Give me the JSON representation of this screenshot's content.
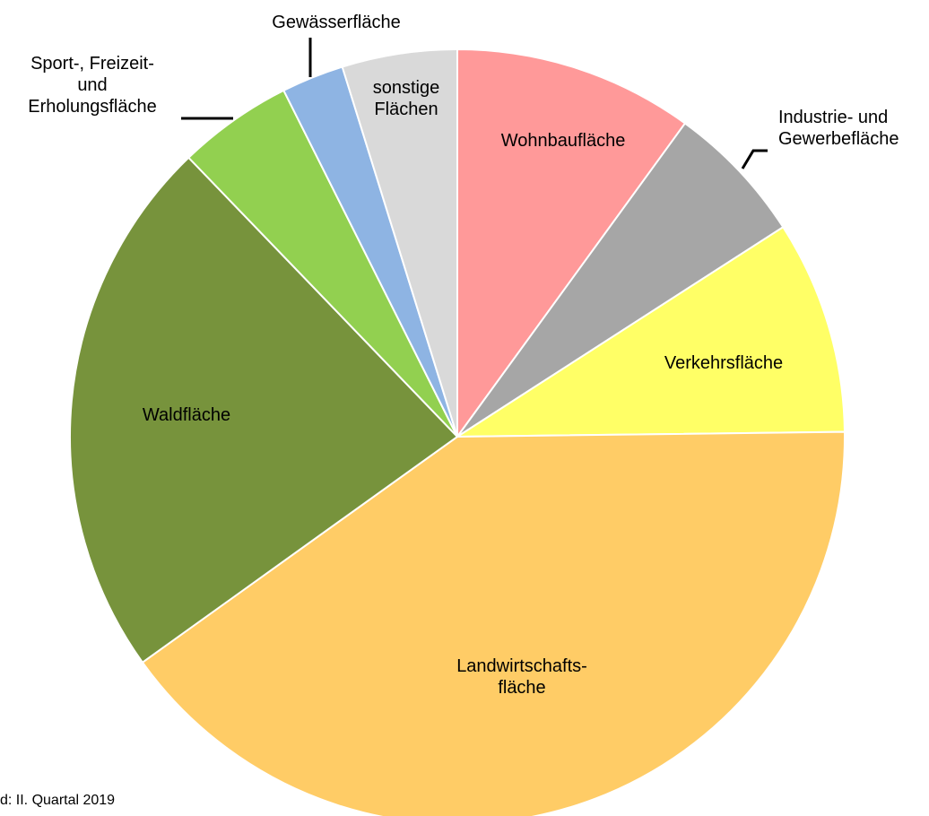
{
  "chart_data": {
    "type": "pie",
    "categories": [
      "Wohnbaufläche",
      "Industrie- und\nGewerbefläche",
      "Verkehrsfläche",
      "Landwirtschafts-\nfläche",
      "Waldfläche",
      "Sport-, Freizeit-\nund\nErholungsfläche",
      "Gewässerfläche",
      "sonstige\nFlächen"
    ],
    "values": [
      10.0,
      5.9,
      8.9,
      40.3,
      22.7,
      4.8,
      2.6,
      4.8
    ],
    "colors": [
      "#ff9999",
      "#a6a6a6",
      "#ffff66",
      "#ffcc66",
      "#77933c",
      "#92d050",
      "#8eb4e3",
      "#d9d9d9"
    ],
    "footnote": "d: II. Quartal 2019"
  }
}
